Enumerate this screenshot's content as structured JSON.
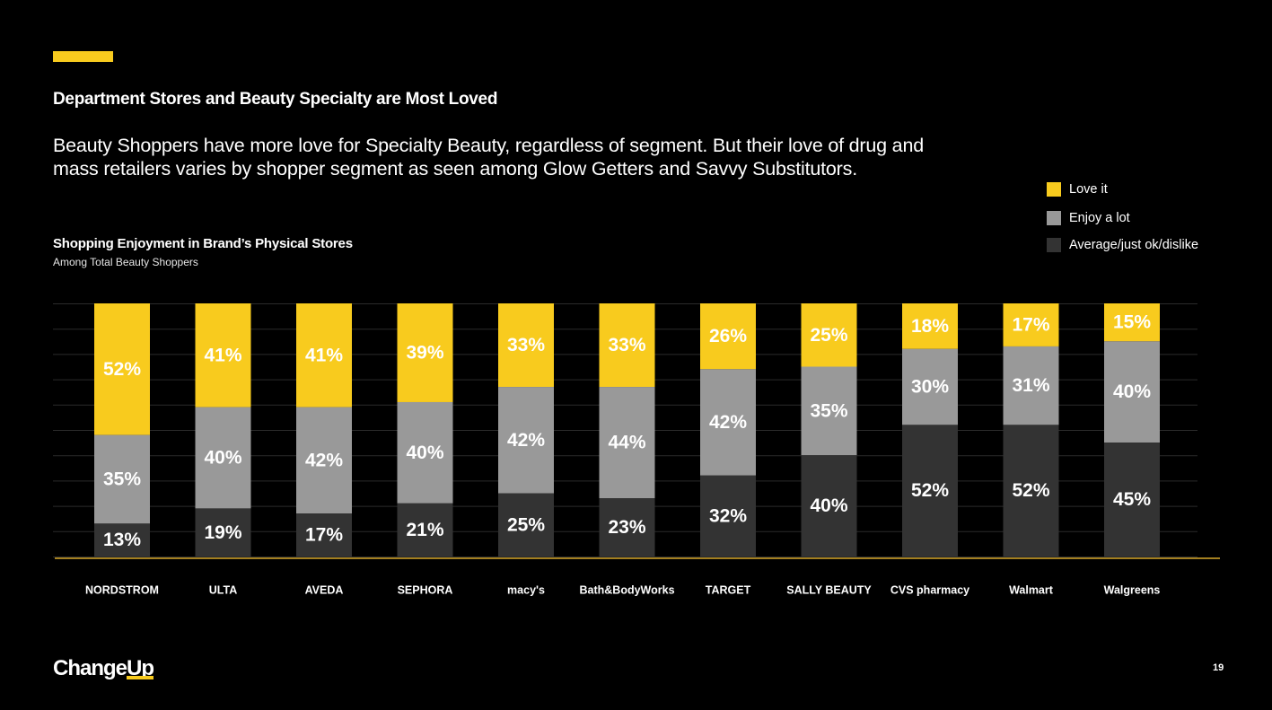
{
  "colors": {
    "accent": "#F8CB1E",
    "love": "#F8CB1E",
    "enjoy": "#999999",
    "average": "#333333",
    "baseline": "#D9A92A",
    "grid": "#2b2b2b"
  },
  "header": {
    "title": "Department Stores and Beauty Specialty are Most Loved",
    "subtitle": "Beauty Shoppers have more love for Specialty Beauty, regardless of segment. But their love of drug and mass retailers varies by shopper segment as seen among Glow Getters and Savvy Substitutors."
  },
  "chart_data": {
    "type": "bar",
    "stacked": true,
    "title": "Shopping Enjoyment in Brand’s Physical Stores",
    "subtitle": "Among Total Beauty Shoppers",
    "categories": [
      "NORDSTROM",
      "ULTA",
      "AVEDA",
      "SEPHORA",
      "macy's",
      "Bath&BodyWorks",
      "TARGET",
      "SALLY BEAUTY",
      "CVS pharmacy",
      "Walmart",
      "Walgreens"
    ],
    "series": [
      {
        "name": "Love it",
        "values": [
          52,
          41,
          41,
          39,
          33,
          33,
          26,
          25,
          18,
          17,
          15
        ],
        "labels": [
          "52%",
          "41%",
          "41%",
          "39%",
          "33%",
          "33%",
          "26%",
          "25%",
          "18%",
          "17%",
          "15%"
        ]
      },
      {
        "name": "Enjoy a lot",
        "values": [
          35,
          40,
          42,
          40,
          42,
          44,
          42,
          35,
          30,
          31,
          40
        ],
        "labels": [
          "35%",
          "40%",
          "42%",
          "40%",
          "42%",
          "44%",
          "42%",
          "35%",
          "30%",
          "31%",
          "40%"
        ]
      },
      {
        "name": "Average/just ok/dislike",
        "values": [
          13,
          19,
          17,
          21,
          25,
          23,
          32,
          40,
          52,
          52,
          45
        ],
        "labels": [
          "13%",
          "19%",
          "17%",
          "21%",
          "25%",
          "23%",
          "32%",
          "40%",
          "52%",
          "52%",
          "45%"
        ]
      }
    ],
    "ylim": [
      0,
      100
    ],
    "grid": true,
    "legend": "top-right"
  },
  "brand": {
    "logo_text_1": "Change",
    "logo_text_2": "Up"
  },
  "page_number": "19"
}
